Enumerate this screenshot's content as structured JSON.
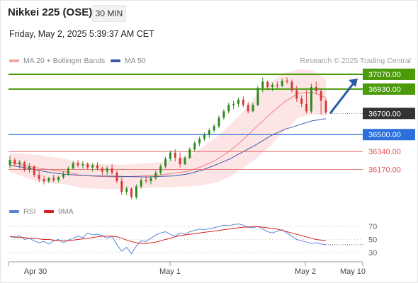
{
  "header": {
    "title": "Nikkei 225 (OSE)",
    "interval": "30 MIN",
    "datetime": "Friday, May 2, 2025 5:39:37 AM CET"
  },
  "legend": {
    "ma20": {
      "label": "MA 20 + Bollinger Bands",
      "color": "#f4a5a5"
    },
    "ma50": {
      "label": "MA 50",
      "color": "#3b5ba8"
    }
  },
  "credit": "Research © 2025 Trading Central",
  "levels": [
    {
      "value": 37070,
      "label": "37070.00",
      "kind": "resistance"
    },
    {
      "value": 36930,
      "label": "36930.00",
      "kind": "resistance"
    },
    {
      "value": 36700,
      "label": "36700.00",
      "kind": "pivot"
    },
    {
      "value": 36500,
      "label": "36500.00",
      "kind": "support-main"
    },
    {
      "value": 36340,
      "label": "36340.00",
      "kind": "support"
    },
    {
      "value": 36170,
      "label": "36170.00",
      "kind": "support"
    }
  ],
  "colors": {
    "resistance": "#4a9a0a",
    "pivot": "#333333",
    "support_main": "#2a6fdb",
    "support": "#e05555",
    "up_candle": "#2e8b1e",
    "down_candle": "#d63a3a",
    "bollinger_fill": "#fde0e0",
    "arrow": "#2b5aa8",
    "rsi": "#5b84d6",
    "rsi_ma": "#d62020"
  },
  "x_axis": {
    "ticks": [
      "Apr 30",
      "May 1",
      "May 2",
      "May 10"
    ]
  },
  "chart_data": [
    {
      "type": "candlestick",
      "title": "Nikkei 225 (OSE)",
      "ylim": [
        35900,
        37130
      ],
      "series": [
        {
          "name": "MA 20 + Bollinger Bands",
          "upper": [
            36330,
            36320,
            36310,
            36290,
            36270,
            36240,
            36225,
            36220,
            36215,
            36220,
            36230,
            36240,
            36265,
            36300,
            36380,
            36470,
            36590,
            36720,
            36880,
            37000,
            37080,
            37120,
            37110,
            37020
          ],
          "lower": [
            36150,
            36100,
            36060,
            36040,
            36030,
            36000,
            35990,
            35985,
            35985,
            35990,
            35995,
            36000,
            36005,
            36010,
            36020,
            36050,
            36100,
            36190,
            36280,
            36400,
            36540,
            36660,
            36690,
            36680
          ]
        },
        {
          "name": "MA 50",
          "values": [
            36210,
            36190,
            36165,
            36140,
            36125,
            36115,
            36110,
            36108,
            36105,
            36102,
            36100,
            36105,
            36110,
            36130,
            36165,
            36215,
            36270,
            36340,
            36410,
            36490,
            36550,
            36590,
            36630,
            36650
          ]
        }
      ],
      "ohlc": [
        [
          36210,
          36300,
          36180,
          36260
        ],
        [
          36260,
          36280,
          36200,
          36220
        ],
        [
          36220,
          36260,
          36180,
          36240
        ],
        [
          36240,
          36250,
          36150,
          36170
        ],
        [
          36170,
          36230,
          36140,
          36200
        ],
        [
          36200,
          36210,
          36100,
          36120
        ],
        [
          36120,
          36160,
          36050,
          36080
        ],
        [
          36080,
          36110,
          36030,
          36060
        ],
        [
          36060,
          36100,
          36040,
          36090
        ],
        [
          36090,
          36120,
          36050,
          36070
        ],
        [
          36070,
          36110,
          36050,
          36100
        ],
        [
          36100,
          36150,
          36080,
          36130
        ],
        [
          36130,
          36200,
          36110,
          36180
        ],
        [
          36180,
          36250,
          36170,
          36230
        ],
        [
          36230,
          36260,
          36190,
          36210
        ],
        [
          36210,
          36250,
          36180,
          36220
        ],
        [
          36220,
          36240,
          36170,
          36190
        ],
        [
          36190,
          36230,
          36150,
          36210
        ],
        [
          36210,
          36240,
          36160,
          36180
        ],
        [
          36180,
          36200,
          36120,
          36150
        ],
        [
          36150,
          36200,
          36120,
          36180
        ],
        [
          36180,
          36220,
          36120,
          36140
        ],
        [
          36140,
          36160,
          36040,
          36060
        ],
        [
          36060,
          36090,
          35930,
          35960
        ],
        [
          35960,
          36010,
          35930,
          35990
        ],
        [
          35990,
          36000,
          35890,
          35910
        ],
        [
          35910,
          36030,
          35890,
          36010
        ],
        [
          36010,
          36090,
          35990,
          36070
        ],
        [
          36070,
          36110,
          36040,
          36060
        ],
        [
          36060,
          36110,
          36030,
          36090
        ],
        [
          36090,
          36160,
          36070,
          36140
        ],
        [
          36140,
          36220,
          36120,
          36200
        ],
        [
          36200,
          36290,
          36180,
          36270
        ],
        [
          36270,
          36350,
          36250,
          36330
        ],
        [
          36330,
          36360,
          36250,
          36280
        ],
        [
          36280,
          36330,
          36190,
          36220
        ],
        [
          36220,
          36300,
          36210,
          36280
        ],
        [
          36280,
          36380,
          36270,
          36360
        ],
        [
          36360,
          36440,
          36340,
          36420
        ],
        [
          36420,
          36480,
          36390,
          36460
        ],
        [
          36460,
          36520,
          36440,
          36500
        ],
        [
          36500,
          36560,
          36470,
          36540
        ],
        [
          36540,
          36600,
          36520,
          36580
        ],
        [
          36580,
          36680,
          36560,
          36660
        ],
        [
          36660,
          36740,
          36640,
          36720
        ],
        [
          36720,
          36800,
          36700,
          36780
        ],
        [
          36780,
          36820,
          36740,
          36790
        ],
        [
          36790,
          36850,
          36760,
          36830
        ],
        [
          36830,
          36860,
          36760,
          36780
        ],
        [
          36780,
          36810,
          36700,
          36720
        ],
        [
          36720,
          36800,
          36710,
          36780
        ],
        [
          36780,
          36960,
          36770,
          36940
        ],
        [
          36940,
          37040,
          36900,
          37000
        ],
        [
          37000,
          37010,
          36920,
          36950
        ],
        [
          36950,
          36990,
          36910,
          36970
        ],
        [
          36970,
          37000,
          36930,
          36960
        ],
        [
          36960,
          37030,
          36950,
          37010
        ],
        [
          37010,
          37040,
          36980,
          37000
        ],
        [
          37000,
          37020,
          36900,
          36920
        ],
        [
          36920,
          36960,
          36810,
          36840
        ],
        [
          36840,
          36870,
          36760,
          36790
        ],
        [
          36790,
          36920,
          36700,
          36720
        ],
        [
          36720,
          36980,
          36700,
          36950
        ],
        [
          36950,
          37000,
          36880,
          36910
        ],
        [
          36910,
          36930,
          36690,
          36820
        ],
        [
          36820,
          36840,
          36690,
          36710
        ]
      ]
    },
    {
      "type": "line",
      "title": "RSI",
      "ylim": [
        20,
        80
      ],
      "yticks": [
        70,
        50,
        30
      ],
      "series": [
        {
          "name": "RSI",
          "values": [
            55,
            53,
            56,
            50,
            52,
            48,
            45,
            47,
            43,
            48,
            50,
            45,
            49,
            52,
            55,
            53,
            60,
            57,
            58,
            56,
            52,
            55,
            42,
            32,
            38,
            28,
            40,
            48,
            47,
            52,
            57,
            60,
            62,
            58,
            55,
            60,
            58,
            62,
            64,
            66,
            65,
            67,
            68,
            70,
            72,
            71,
            73,
            74,
            72,
            69,
            68,
            70,
            66,
            62,
            60,
            63,
            65,
            60,
            55,
            50,
            48,
            46,
            44,
            45,
            43,
            42
          ]
        },
        {
          "name": "9MA",
          "values": [
            54,
            54,
            53,
            53,
            52,
            52,
            51,
            50,
            50,
            49,
            48,
            48,
            48,
            49,
            50,
            51,
            52,
            53,
            54,
            55,
            55,
            55,
            54,
            52,
            49,
            47,
            45,
            44,
            44,
            45,
            46,
            48,
            50,
            52,
            54,
            56,
            57,
            58,
            59,
            60,
            61,
            62,
            63,
            64,
            65,
            66,
            67,
            68,
            69,
            69,
            70,
            70,
            69,
            68,
            67,
            66,
            64,
            62,
            60,
            58,
            56,
            54,
            52,
            50,
            49,
            48
          ]
        }
      ]
    }
  ]
}
